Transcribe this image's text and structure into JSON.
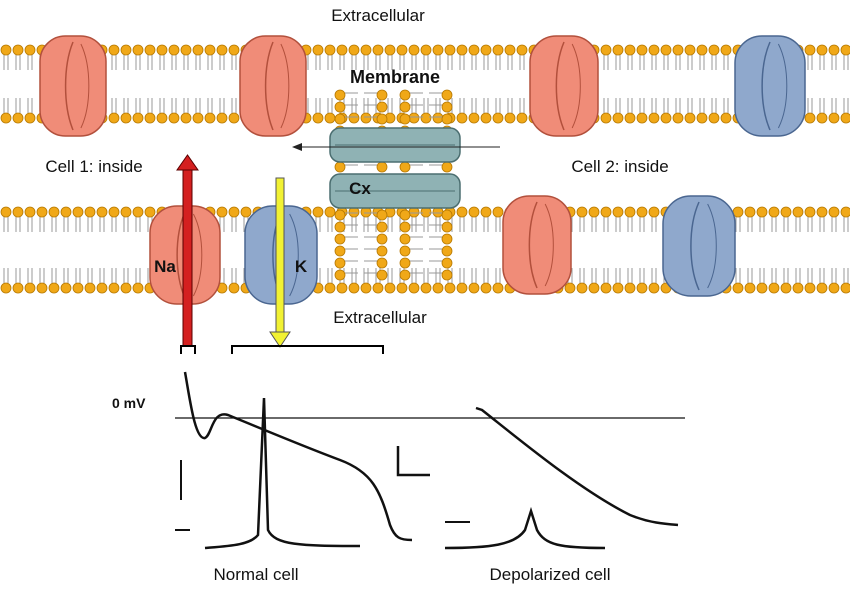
{
  "labels": {
    "extracellular_top": "Extracellular",
    "membrane": "Membrane",
    "cell1": "Cell 1: inside",
    "cell2": "Cell 2: inside",
    "cx": "Cx",
    "na": "Na",
    "k": "K",
    "extracellular_bottom": "Extracellular",
    "zero_mv": "0  mV",
    "normal_cell": "Normal cell",
    "depolarized_cell": "Depolarized cell"
  }
}
